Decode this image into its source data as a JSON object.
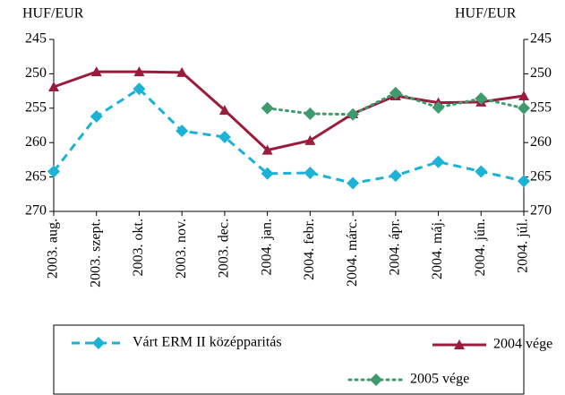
{
  "chart_data": {
    "type": "line",
    "y_label": "HUF/EUR",
    "y2_label": "HUF/EUR",
    "categories": [
      "2003. aug.",
      "2003. szept.",
      "2003. okt.",
      "2003. nov.",
      "2003. dec.",
      "2004. jan.",
      "2004. febr.",
      "2004. márc.",
      "2004. ápr.",
      "2004. máj.",
      "2004. jún.",
      "2004. júl."
    ],
    "series": [
      {
        "name": "Várt ERM II középparitás",
        "color": "#1ab3d6",
        "style": "dashed",
        "marker": "diamond",
        "values": [
          264.2,
          256.2,
          252.2,
          258.3,
          259.2,
          264.5,
          264.4,
          265.9,
          264.8,
          262.8,
          264.2,
          265.6
        ]
      },
      {
        "name": "2004 vége",
        "color": "#9b1b3c",
        "style": "solid",
        "marker": "triangle",
        "values": [
          251.9,
          249.7,
          249.7,
          249.8,
          255.3,
          261.1,
          259.7,
          255.8,
          253.2,
          254.2,
          254.1,
          253.2
        ]
      },
      {
        "name": "2005 vége",
        "color": "#3f9a6e",
        "style": "dotted",
        "marker": "diamond",
        "values": [
          null,
          null,
          null,
          null,
          null,
          255.0,
          255.8,
          255.9,
          252.8,
          254.9,
          253.6,
          255.0
        ]
      }
    ],
    "ylim": [
      245,
      270
    ],
    "yticks": [
      245,
      250,
      255,
      260,
      265,
      270
    ],
    "y2lim": [
      245,
      270
    ],
    "y2ticks": [
      245,
      250,
      255,
      260,
      265,
      270
    ],
    "y_inverted": true
  }
}
